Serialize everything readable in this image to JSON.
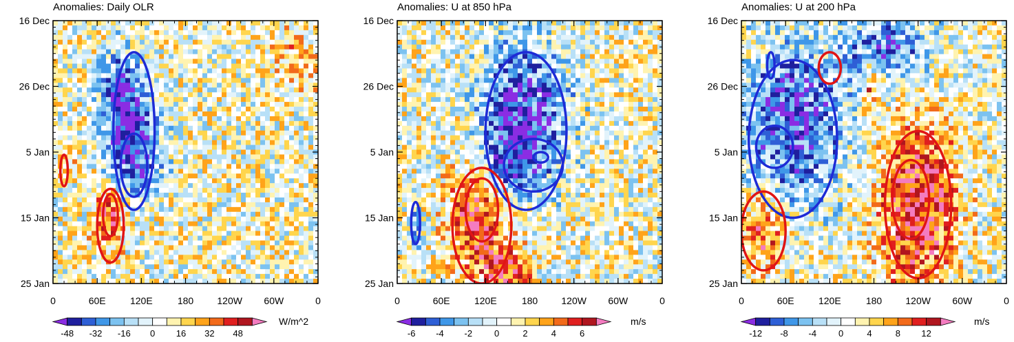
{
  "chart_data": [
    {
      "type": "heatmap",
      "title": "Anomalies: Daily OLR",
      "units": "W/m^2",
      "xlabel": "",
      "ylabel": "",
      "x_ticks": [
        "0",
        "60E",
        "120E",
        "180",
        "120W",
        "60W",
        "0"
      ],
      "y_ticks": [
        "16 Dec",
        "26 Dec",
        "5 Jan",
        "15 Jan",
        "25 Jan"
      ],
      "xlim": [
        0,
        360
      ],
      "ylim_dates": [
        "16 Dec",
        "25 Jan"
      ],
      "colorbar_levels": [
        -56,
        -48,
        -40,
        -32,
        -24,
        -16,
        -8,
        0,
        8,
        16,
        24,
        32,
        40,
        48,
        56
      ],
      "colorbar_labels": [
        "-48",
        "-32",
        "-16",
        "0",
        "16",
        "32",
        "48"
      ],
      "contours": [
        {
          "sign": "negative",
          "color": "blue",
          "desc": "enhanced convection band 60E-160E, late Dec to mid Jan"
        },
        {
          "sign": "positive",
          "color": "red",
          "desc": "suppressed convection near 60E-90E, mid to late Jan"
        }
      ]
    },
    {
      "type": "heatmap",
      "title": "Anomalies: U at 850 hPa",
      "units": "m/s",
      "xlabel": "",
      "ylabel": "",
      "x_ticks": [
        "0",
        "60E",
        "120E",
        "180",
        "120W",
        "60W",
        "0"
      ],
      "y_ticks": [
        "16 Dec",
        "26 Dec",
        "5 Jan",
        "15 Jan",
        "25 Jan"
      ],
      "xlim": [
        0,
        360
      ],
      "ylim_dates": [
        "16 Dec",
        "25 Jan"
      ],
      "colorbar_levels": [
        -7,
        -6,
        -5,
        -4,
        -3,
        -2,
        -1,
        0,
        1,
        2,
        3,
        4,
        5,
        6,
        7
      ],
      "colorbar_labels": [
        "-6",
        "-4",
        "-2",
        "0",
        "2",
        "4",
        "6"
      ],
      "contours": [
        {
          "sign": "negative",
          "color": "blue",
          "desc": "easterly anomalies 120E-150W, Dec to mid Jan"
        },
        {
          "sign": "positive",
          "color": "red",
          "desc": "westerly anomalies 60E-150E, Jan"
        }
      ]
    },
    {
      "type": "heatmap",
      "title": "Anomalies: U at 200 hPa",
      "units": "m/s",
      "xlabel": "",
      "ylabel": "",
      "x_ticks": [
        "0",
        "60E",
        "120E",
        "180",
        "120W",
        "60W",
        "0"
      ],
      "y_ticks": [
        "16 Dec",
        "26 Dec",
        "5 Jan",
        "15 Jan",
        "25 Jan"
      ],
      "xlim": [
        0,
        360
      ],
      "ylim_dates": [
        "16 Dec",
        "25 Jan"
      ],
      "colorbar_levels": [
        -14,
        -12,
        -10,
        -8,
        -6,
        -4,
        -2,
        0,
        2,
        4,
        6,
        8,
        10,
        12,
        14
      ],
      "colorbar_labels": [
        "-12",
        "-8",
        "-4",
        "0",
        "4",
        "8",
        "12"
      ],
      "contours": [
        {
          "sign": "negative",
          "color": "blue",
          "desc": "easterly anomalies 0-150E, Dec to mid Jan"
        },
        {
          "sign": "positive",
          "color": "red",
          "desc": "westerly anomalies 150E-60W, Jan"
        }
      ]
    }
  ],
  "palette": [
    "#8b2de3",
    "#1f1f9e",
    "#2e5fd6",
    "#3f97e8",
    "#7cc2f0",
    "#b8e0f7",
    "#e2f3fb",
    "#ffffff",
    "#fff3b0",
    "#ffd54d",
    "#ffa31a",
    "#f26a1a",
    "#e01f1f",
    "#b0161f",
    "#f47cc0"
  ]
}
